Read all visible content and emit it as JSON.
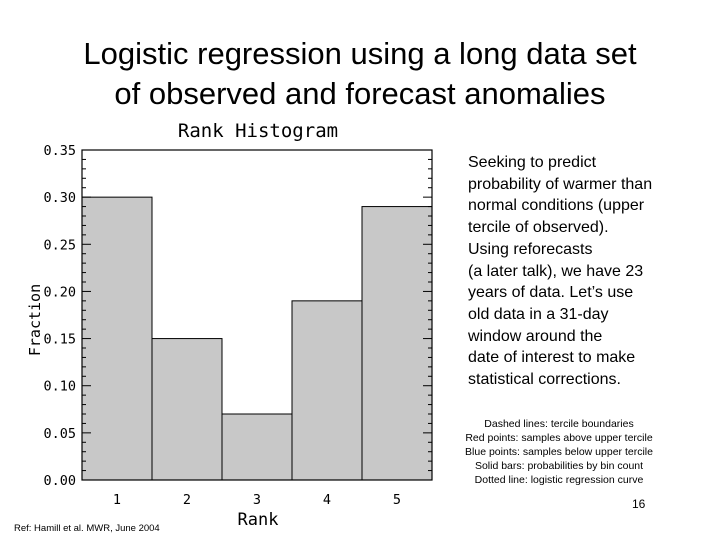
{
  "slide": {
    "title_lines": [
      "Logistic regression using a long data set",
      "of observed and forecast anomalies"
    ],
    "body_lines": [
      "Seeking to predict",
      "probability of warmer than",
      "normal conditions (upper",
      "tercile of observed).",
      "Using reforecasts",
      "(a later talk), we have 23",
      "years of data. Let’s use",
      "old data in a 31-day",
      "window around the",
      "date of interest to make",
      "statistical corrections."
    ],
    "legend_lines": [
      "Dashed lines: tercile boundaries",
      "Red points: samples above upper tercile",
      "Blue points: samples below upper tercile",
      "Solid bars: probabilities by bin count",
      "Dotted line: logistic regression curve"
    ],
    "page_number": "16",
    "reference": "Ref: Hamill et al. MWR, June 2004"
  },
  "chart_data": {
    "type": "bar",
    "title": "Rank Histogram",
    "xlabel": "Rank",
    "ylabel": "Fraction",
    "categories": [
      "1",
      "2",
      "3",
      "4",
      "5"
    ],
    "values": [
      0.3,
      0.15,
      0.07,
      0.19,
      0.29
    ],
    "ylim": [
      0,
      0.35
    ],
    "yticks": [
      "0.00",
      "0.05",
      "0.10",
      "0.15",
      "0.20",
      "0.25",
      "0.30",
      "0.35"
    ],
    "grid": false,
    "colors": {
      "bar": "#c8c8c8",
      "bar_edge": "#000000",
      "frame": "#000000"
    }
  }
}
